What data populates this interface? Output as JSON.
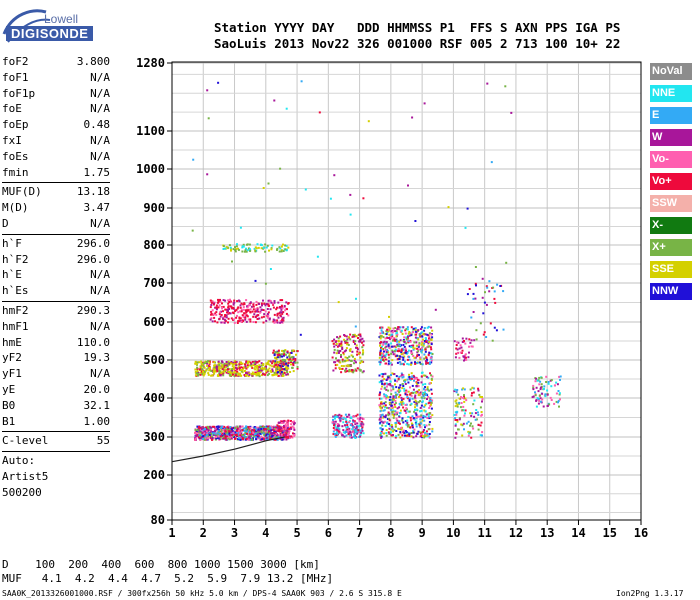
{
  "logo": {
    "top": "Lowell",
    "bottom": "DIGISONDE"
  },
  "header": {
    "line1": "Station YYYY DAY   DDD HHMMSS P1  FFS S AXN PPS IGA PS",
    "line2": "SaoLuis 2013 Nov22 326 001000 RSF 005 2 713 100 10+ 22"
  },
  "params": [
    [
      {
        "name": "foF2",
        "value": "3.800"
      },
      {
        "name": "foF1",
        "value": "N/A"
      },
      {
        "name": "foF1p",
        "value": "N/A"
      },
      {
        "name": "foE",
        "value": "N/A"
      },
      {
        "name": "foEp",
        "value": "0.48"
      },
      {
        "name": "fxI",
        "value": "N/A"
      },
      {
        "name": "foEs",
        "value": "N/A"
      },
      {
        "name": "fmin",
        "value": "1.75"
      }
    ],
    [
      {
        "name": "MUF(D)",
        "value": "13.18"
      },
      {
        "name": "M(D)",
        "value": "3.47"
      },
      {
        "name": "D",
        "value": "N/A"
      }
    ],
    [
      {
        "name": "h`F",
        "value": "296.0"
      },
      {
        "name": "h`F2",
        "value": "296.0"
      },
      {
        "name": "h`E",
        "value": "N/A"
      },
      {
        "name": "h`Es",
        "value": "N/A"
      }
    ],
    [
      {
        "name": "hmF2",
        "value": "290.3"
      },
      {
        "name": "hmF1",
        "value": "N/A"
      },
      {
        "name": "hmE",
        "value": "110.0"
      },
      {
        "name": "yF2",
        "value": "19.3"
      },
      {
        "name": "yF1",
        "value": "N/A"
      },
      {
        "name": "yE",
        "value": "20.0"
      },
      {
        "name": "B0",
        "value": "32.1"
      },
      {
        "name": "B1",
        "value": "1.00"
      }
    ],
    [
      {
        "name": "C-level",
        "value": "55"
      }
    ]
  ],
  "auto": [
    "Auto:",
    "Artist5",
    "500200"
  ],
  "legend": [
    {
      "label": "NoVal",
      "color": "#8c8c8c"
    },
    {
      "label": "NNE",
      "color": "#22e6f0"
    },
    {
      "label": "E",
      "color": "#33aaf5"
    },
    {
      "label": "W",
      "color": "#a8169a"
    },
    {
      "label": "Vo-",
      "color": "#ff5fb0"
    },
    {
      "label": "Vo+",
      "color": "#ee0a3c"
    },
    {
      "label": "SSW",
      "color": "#f4b0aa"
    },
    {
      "label": "X-",
      "color": "#117a11"
    },
    {
      "label": "X+",
      "color": "#78b446"
    },
    {
      "label": "SSE",
      "color": "#d4d000"
    },
    {
      "label": "NNW",
      "color": "#2010d8"
    }
  ],
  "footer": {
    "line1": "D    100  200  400  600  800 1000 1500 3000 [km]",
    "line2": "MUF   4.1  4.2  4.4  4.7  5.2  5.9  7.9 13.2 [MHz]",
    "line3": "SAA0K_2013326001000.RSF / 300fx256h 50 kHz 5.0 km / DPS-4 SAA0K 903 / 2.6 S 315.8 E",
    "version": "Ion2Png 1.3.17"
  },
  "chart_data": {
    "type": "scatter",
    "xlim": [
      1,
      16
    ],
    "ylim": [
      80,
      1280
    ],
    "xticks": [
      1,
      2,
      3,
      4,
      5,
      6,
      7,
      8,
      9,
      10,
      11,
      12,
      13,
      14,
      15,
      16
    ],
    "yticks": [
      80,
      200,
      300,
      400,
      500,
      600,
      700,
      800,
      900,
      1000,
      1100,
      1280
    ],
    "grid": true,
    "clusters": [
      {
        "x0": 1.7,
        "x1": 4.7,
        "y0": 295,
        "y1": 330,
        "dens": 900,
        "c": [
          "Vo+",
          "Vo-",
          "W",
          "E",
          "NNW",
          "X+"
        ]
      },
      {
        "x0": 4.3,
        "x1": 4.9,
        "y0": 300,
        "y1": 345,
        "dens": 90,
        "c": [
          "Vo+",
          "Vo-",
          "W"
        ]
      },
      {
        "x0": 6.1,
        "x1": 7.1,
        "y0": 300,
        "y1": 360,
        "dens": 200,
        "c": [
          "E",
          "NNE",
          "Vo+",
          "Vo-",
          "W"
        ]
      },
      {
        "x0": 7.6,
        "x1": 9.3,
        "y0": 300,
        "y1": 470,
        "dens": 560,
        "c": [
          "E",
          "NNE",
          "Vo+",
          "W",
          "NNW",
          "X+",
          "Vo-",
          "SSE"
        ]
      },
      {
        "x0": 10.0,
        "x1": 10.9,
        "y0": 300,
        "y1": 430,
        "dens": 110,
        "c": [
          "SSE",
          "X+",
          "E",
          "NNE",
          "W",
          "Vo+",
          "Vo-"
        ]
      },
      {
        "x0": 1.7,
        "x1": 4.7,
        "y0": 460,
        "y1": 500,
        "dens": 500,
        "c": [
          "SSE",
          "SSE",
          "SSE",
          "X+",
          "Vo+",
          "W"
        ]
      },
      {
        "x0": 4.2,
        "x1": 5.0,
        "y0": 470,
        "y1": 530,
        "dens": 120,
        "c": [
          "SSE",
          "X+",
          "Vo+",
          "NNW"
        ]
      },
      {
        "x0": 6.1,
        "x1": 7.1,
        "y0": 470,
        "y1": 570,
        "dens": 170,
        "c": [
          "SSE",
          "X+",
          "Vo+",
          "W"
        ]
      },
      {
        "x0": 7.6,
        "x1": 9.3,
        "y0": 490,
        "y1": 590,
        "dens": 420,
        "c": [
          "SSE",
          "Vo+",
          "NNE",
          "NNW",
          "W",
          "E",
          "X+",
          "Vo-"
        ]
      },
      {
        "x0": 10.0,
        "x1": 10.6,
        "y0": 500,
        "y1": 560,
        "dens": 40,
        "c": [
          "Vo+",
          "Vo-",
          "W"
        ]
      },
      {
        "x0": 2.2,
        "x1": 4.7,
        "y0": 600,
        "y1": 660,
        "dens": 300,
        "c": [
          "Vo+",
          "W",
          "Vo-",
          "Vo+"
        ]
      },
      {
        "x0": 2.6,
        "x1": 4.7,
        "y0": 785,
        "y1": 805,
        "dens": 80,
        "c": [
          "SSE",
          "NNE",
          "X+"
        ]
      },
      {
        "x0": 10.3,
        "x1": 11.6,
        "y0": 550,
        "y1": 720,
        "dens": 40,
        "c": [
          "W",
          "Vo+",
          "NNW",
          "E",
          "X+"
        ]
      },
      {
        "x0": 12.5,
        "x1": 13.4,
        "y0": 380,
        "y1": 460,
        "dens": 80,
        "c": [
          "Vo-",
          "W",
          "NNE",
          "X+",
          "E"
        ]
      }
    ],
    "curve": [
      [
        1.0,
        235
      ],
      [
        2.0,
        250
      ],
      [
        3.0,
        268
      ],
      [
        4.0,
        290
      ],
      [
        4.6,
        300
      ]
    ]
  }
}
